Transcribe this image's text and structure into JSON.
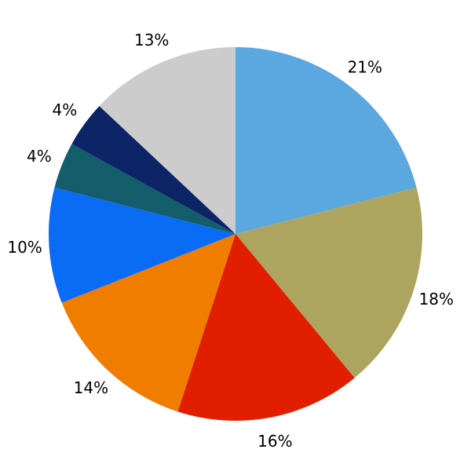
{
  "chart_data": {
    "type": "pie",
    "title": "",
    "legend": false,
    "background": "#FFFFFF",
    "label_color": "#000000",
    "start_angle": "top",
    "direction": "clockwise",
    "slices": [
      {
        "label": "21%",
        "value": 21,
        "color": "#5BA7E0"
      },
      {
        "label": "18%",
        "value": 18,
        "color": "#ACA45F"
      },
      {
        "label": "16%",
        "value": 16,
        "color": "#E21E00"
      },
      {
        "label": "14%",
        "value": 14,
        "color": "#F07C00"
      },
      {
        "label": "10%",
        "value": 10,
        "color": "#0A6BF5"
      },
      {
        "label": "4%",
        "value": 4,
        "color": "#135E6A"
      },
      {
        "label": "4%",
        "value": 4,
        "color": "#0D2467"
      },
      {
        "label": "13%",
        "value": 13,
        "color": "#CCCCCC"
      }
    ]
  }
}
